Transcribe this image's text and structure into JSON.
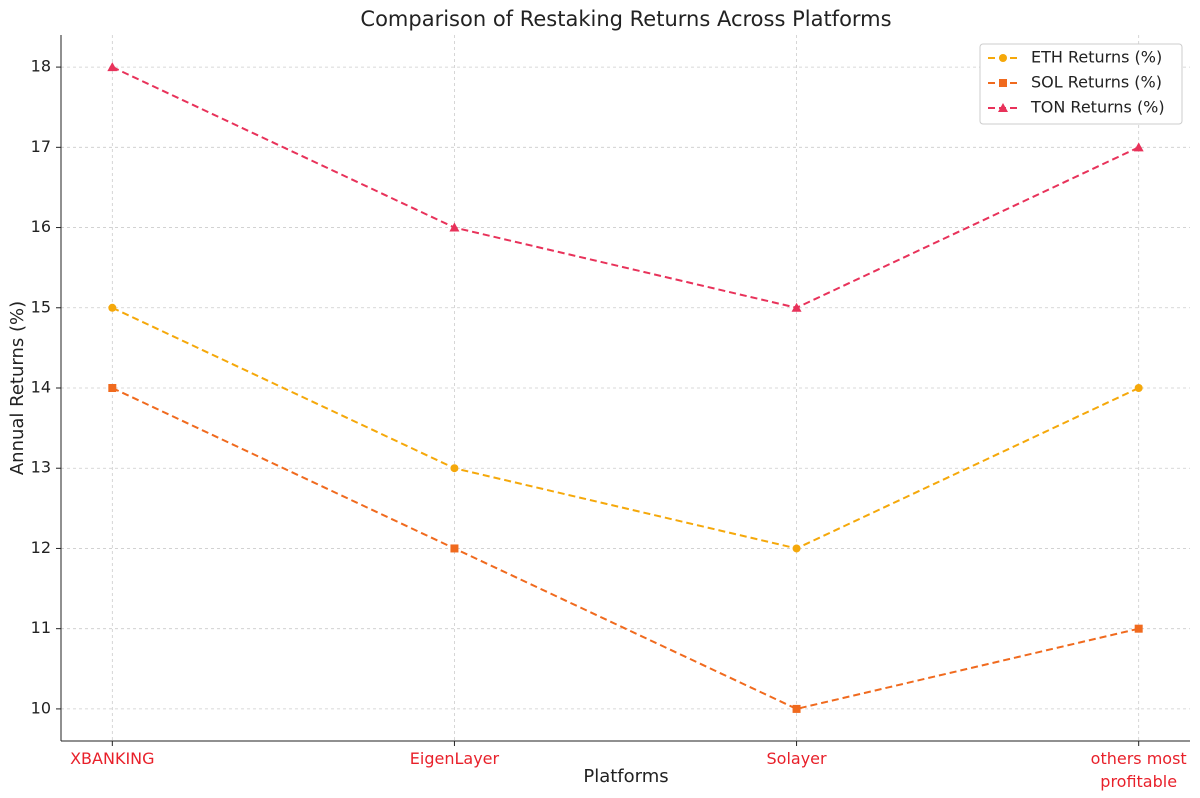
{
  "chart_data": {
    "type": "line",
    "title": "Comparison of Restaking Returns Across Platforms",
    "x_label": "Platforms",
    "y_label": "Annual Returns (%)",
    "categories": [
      "XBANKING",
      "EigenLayer",
      "Solayer",
      "others most profitable"
    ],
    "category_color": "#e8202a",
    "series": [
      {
        "name": "ETH Returns (%)",
        "color": "#f5a80a",
        "marker": "circle",
        "values": [
          15,
          13,
          12,
          14
        ]
      },
      {
        "name": "SOL Returns (%)",
        "color": "#f06a1e",
        "marker": "square",
        "values": [
          14,
          12,
          10,
          11
        ]
      },
      {
        "name": "TON Returns (%)",
        "color": "#e8325a",
        "marker": "triangle",
        "values": [
          18,
          16,
          15,
          17
        ]
      }
    ],
    "ylim": [
      9.6,
      18.4
    ],
    "yticks": [
      10,
      11,
      12,
      13,
      14,
      15,
      16,
      17,
      18
    ],
    "grid": true,
    "line_style": "dashed",
    "legend": "upper-right"
  }
}
